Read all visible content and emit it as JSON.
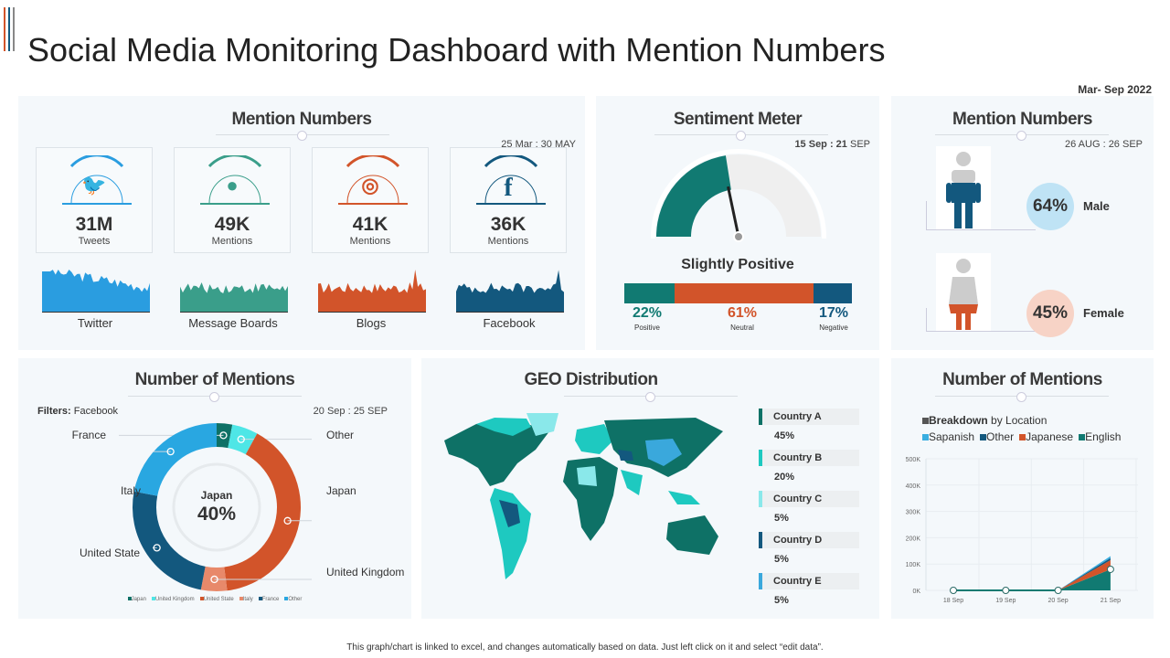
{
  "header": {
    "title": "Social Media Monitoring Dashboard with Mention Numbers",
    "period": "Mar- Sep 2022"
  },
  "mentions": {
    "title": "Mention Numbers",
    "date": "25 Mar : 30 MAY",
    "cards": [
      {
        "icon": "twitter-icon",
        "value": "31M",
        "sub": "Tweets",
        "label": "Twitter",
        "color": "#2a9de0"
      },
      {
        "icon": "chat-bubble-icon",
        "value": "49K",
        "sub": "Mentions",
        "label": "Message Boards",
        "color": "#3a9e8a"
      },
      {
        "icon": "rss-icon",
        "value": "41K",
        "sub": "Mentions",
        "label": "Blogs",
        "color": "#d2542a"
      },
      {
        "icon": "facebook-icon",
        "value": "36K",
        "sub": "Mentions",
        "label": "Facebook",
        "color": "#13587e"
      }
    ]
  },
  "sentiment": {
    "title": "Sentiment Meter",
    "date_bold": "15 Sep : 21",
    "date_rest": " SEP",
    "gauge_level": 0.45,
    "status": "Slightly Positive",
    "segments": [
      {
        "pct": "22%",
        "label": "Positive",
        "value": 22,
        "color": "#117a72"
      },
      {
        "pct": "61%",
        "label": "Neutral",
        "value": 61,
        "color": "#d2542a"
      },
      {
        "pct": "17%",
        "label": "Negative",
        "value": 17,
        "color": "#13587e"
      }
    ]
  },
  "gender": {
    "title": "Mention Numbers",
    "date": "26 AUG : 26 SEP",
    "items": [
      {
        "pct": "64%",
        "label": "Male",
        "value": 64,
        "color": "#13587e",
        "bubble": "#bfe3f5"
      },
      {
        "pct": "45%",
        "label": "Female",
        "value": 45,
        "color": "#d2542a",
        "bubble": "#f7d3c6"
      }
    ]
  },
  "donut": {
    "title": "Number of Mentions",
    "filter_label": "Filters:",
    "filter_value": "Facebook",
    "date": "20 Sep : 25 SEP",
    "center_label": "Japan",
    "center_value": "40%",
    "slices": [
      {
        "name": "France",
        "value": 3,
        "color": "#0e7166"
      },
      {
        "name": "Other",
        "value": 5,
        "color": "#4ee6e6"
      },
      {
        "name": "Japan",
        "value": 40,
        "color": "#d2542a"
      },
      {
        "name": "United Kingdom",
        "value": 5,
        "color": "#e8896a"
      },
      {
        "name": "United State",
        "value": 25,
        "color": "#13587e"
      },
      {
        "name": "Italy",
        "value": 22,
        "color": "#29a7e1"
      }
    ],
    "legend": [
      {
        "name": "Japan",
        "color": "#0e7166"
      },
      {
        "name": "United Kingdom",
        "color": "#4ee6e6"
      },
      {
        "name": "United State",
        "color": "#d2542a"
      },
      {
        "name": "Italy",
        "color": "#e8896a"
      },
      {
        "name": "France",
        "color": "#13587e"
      },
      {
        "name": "Other",
        "color": "#29a7e1"
      }
    ]
  },
  "geo": {
    "title": "GEO Distribution",
    "countries": [
      {
        "name": "Country A",
        "pct": "45%",
        "color": "#0e7166"
      },
      {
        "name": "Country B",
        "pct": "20%",
        "color": "#1ec9c0"
      },
      {
        "name": "Country C",
        "pct": "5%",
        "color": "#8ae8ea"
      },
      {
        "name": "Country D",
        "pct": "5%",
        "color": "#13587e"
      },
      {
        "name": "Country E",
        "pct": "5%",
        "color": "#3aa8dc"
      }
    ]
  },
  "chart_data": {
    "type": "area",
    "title": "Number of Mentions",
    "legend_title_bold": "Breakdown",
    "legend_title_rest": " by Location",
    "categories": [
      "18 Sep",
      "19 Sep",
      "20 Sep",
      "21 Sep"
    ],
    "ylim": [
      0,
      500000
    ],
    "yticks": [
      "0K",
      "100K",
      "200K",
      "300K",
      "400K",
      "500K"
    ],
    "stacked": true,
    "grid": true,
    "series": [
      {
        "name": "English",
        "values": [
          0,
          0,
          0,
          80000
        ],
        "color": "#117a72"
      },
      {
        "name": "Japanese",
        "values": [
          0,
          0,
          0,
          35000
        ],
        "color": "#d2542a"
      },
      {
        "name": "Other",
        "values": [
          0,
          0,
          0,
          8000
        ],
        "color": "#13587e"
      },
      {
        "name": "Sapanish",
        "values": [
          0,
          0,
          0,
          7000
        ],
        "color": "#3aaee0"
      }
    ],
    "legend_order": [
      "Sapanish",
      "Other",
      "Japanese",
      "English"
    ]
  },
  "footer": {
    "note": "This graph/chart is linked to excel, and changes automatically based on data. Just left click on it and select “edit data”."
  }
}
